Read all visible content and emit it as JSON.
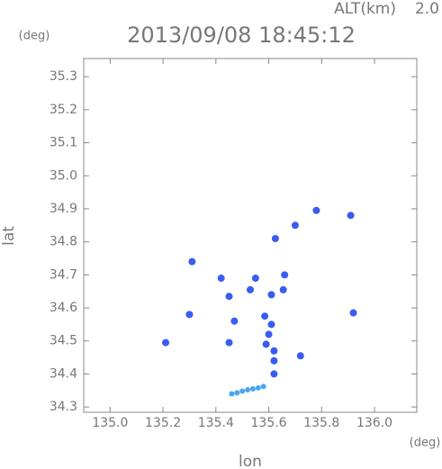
{
  "chart_data": {
    "type": "scatter",
    "title": "2013/09/08 18:45:12",
    "alt_label": "ALT(km)",
    "alt_value": "2.0",
    "y_unit": "(deg)",
    "x_unit": "(deg)",
    "xlabel": "lon",
    "ylabel": "lat",
    "xlim": [
      134.9,
      136.16
    ],
    "ylim": [
      34.284,
      35.355
    ],
    "xticks": [
      {
        "value": 135,
        "label": "135.0"
      },
      135.2,
      135.4,
      135.6,
      135.8,
      {
        "value": 136,
        "label": "136.0"
      }
    ],
    "yticks": [
      34.3,
      34.4,
      34.5,
      34.6,
      34.7,
      34.8,
      34.9,
      {
        "value": 35,
        "label": "35.0"
      },
      35.1,
      35.2,
      35.3
    ],
    "series": [
      {
        "color": "#3a5cf0",
        "x": [
          135.21,
          135.3,
          135.31,
          135.42,
          135.45,
          135.45,
          135.47,
          135.53,
          135.55,
          135.585,
          135.6,
          135.61,
          135.62,
          135.62,
          135.62,
          135.59,
          135.625,
          135.655,
          135.66,
          135.72,
          135.78,
          135.91,
          135.92,
          135.7,
          135.61
        ],
        "values": [
          34.495,
          34.58,
          34.74,
          34.69,
          34.635,
          34.495,
          34.56,
          34.655,
          34.69,
          34.575,
          34.52,
          34.55,
          34.47,
          34.44,
          34.4,
          34.49,
          34.81,
          34.655,
          34.7,
          34.455,
          34.895,
          34.88,
          34.585,
          34.85,
          34.64
        ]
      },
      {
        "color": "#4aa8ee",
        "x": [
          135.46,
          135.48,
          135.5,
          135.52,
          135.54,
          135.56,
          135.58
        ],
        "values": [
          34.34,
          34.343,
          34.348,
          34.352,
          34.355,
          34.358,
          34.362
        ]
      }
    ]
  }
}
